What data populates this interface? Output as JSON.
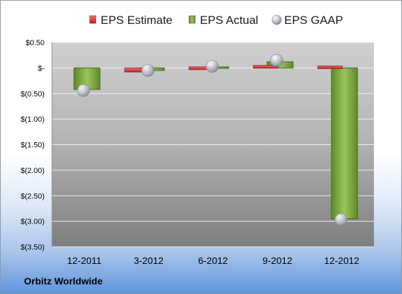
{
  "chart_data": {
    "type": "bar",
    "categories": [
      "12-2011",
      "3-2012",
      "6-2012",
      "9-2012",
      "12-2012"
    ],
    "series": [
      {
        "name": "EPS Estimate",
        "values": [
          null,
          -0.08,
          0.02,
          0.05,
          0.04
        ],
        "color": "#e03a3a"
      },
      {
        "name": "EPS Actual",
        "values": [
          -0.42,
          -0.05,
          0.02,
          0.12,
          -2.95
        ],
        "color": "#7ba23f"
      },
      {
        "name": "EPS GAAP",
        "values": [
          -0.44,
          -0.05,
          0.03,
          0.15,
          -2.97
        ],
        "color": "#c4c9d2"
      }
    ],
    "y_ticks": [
      "$0.50",
      "$-",
      "$(0.50)",
      "$(1.00)",
      "$(1.50)",
      "$(2.00)",
      "$(2.50)",
      "$(3.00)",
      "$(3.50)"
    ],
    "ylim": [
      -3.5,
      0.5
    ],
    "grid": true,
    "legend_position": "top",
    "title": "",
    "xlabel": "",
    "ylabel": ""
  },
  "footer": {
    "company": "Orbitz Worldwide"
  }
}
